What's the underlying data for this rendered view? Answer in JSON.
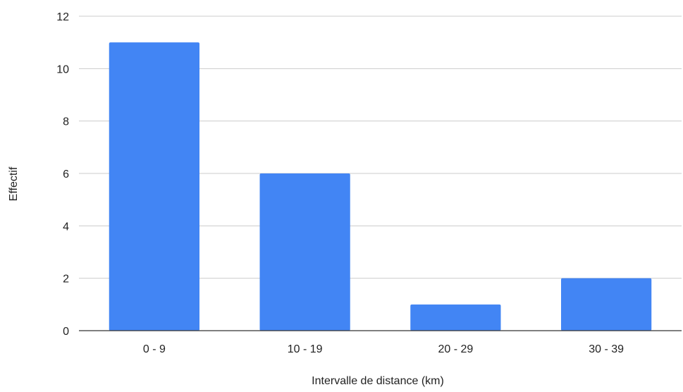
{
  "chart_data": {
    "type": "bar",
    "title": "",
    "xlabel": "Intervalle de distance (km)",
    "ylabel": "Effectif",
    "categories": [
      "0 - 9",
      "10 - 19",
      "20 - 29",
      "30 - 39"
    ],
    "values": [
      11,
      6,
      1,
      2
    ],
    "ylim": [
      0,
      12
    ],
    "yticks": [
      "0",
      "2",
      "4",
      "6",
      "8",
      "10",
      "12"
    ],
    "grid": true,
    "legend": "none",
    "bar_color": "#4285F4",
    "grid_color": "#cccccc",
    "axis_color": "#333333"
  }
}
